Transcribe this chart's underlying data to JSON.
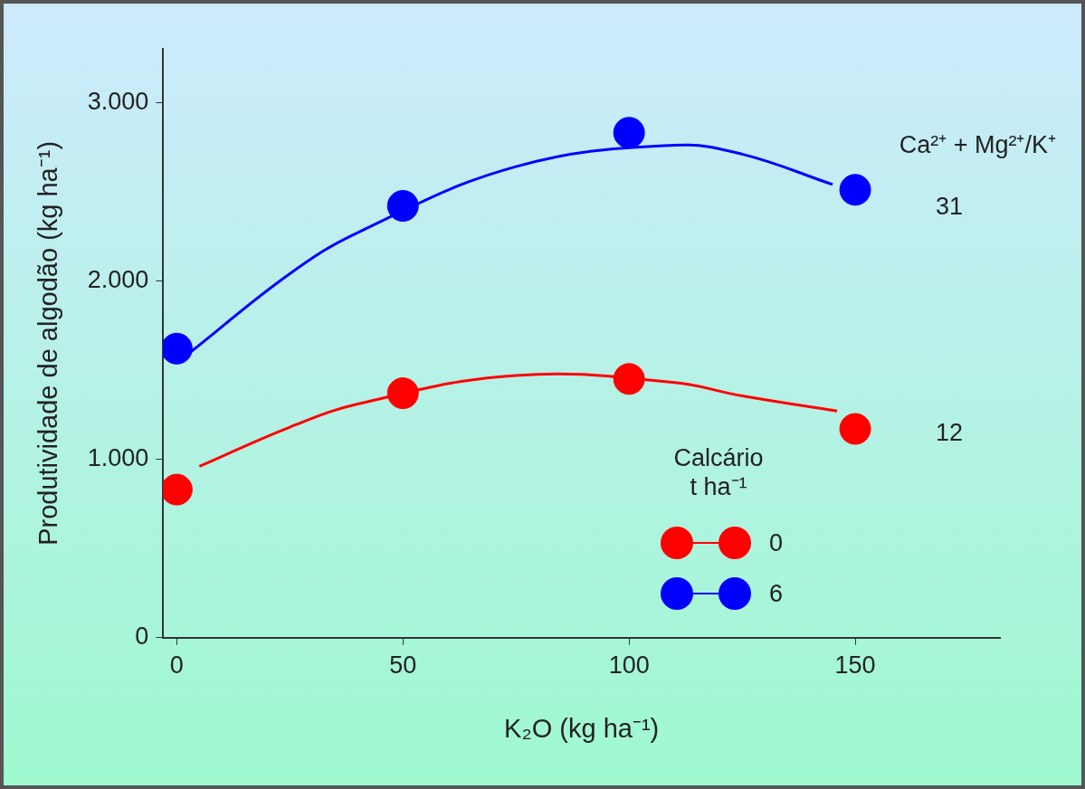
{
  "chart_data": {
    "type": "scatter",
    "xlabel": "K₂O (kg ha⁻¹)",
    "ylabel": "Produtividade de algodão (kg ha⁻¹)",
    "legend_title": "Calcário\nt ha⁻¹",
    "x": [
      0,
      50,
      100,
      150
    ],
    "series": [
      {
        "name": "0",
        "color": "#ff0000",
        "values": [
          830,
          1370,
          1450,
          1170
        ]
      },
      {
        "name": "6",
        "color": "#0000ff",
        "values": [
          1620,
          2420,
          2830,
          2510
        ]
      },
      {
        "type": "line",
        "marker": "none",
        "color": "#ff0000",
        "x": [
          5,
          25,
          40,
          75,
          110,
          125,
          146
        ],
        "values": [
          960,
          1180,
          1310,
          1470,
          1430,
          1355,
          1270
        ]
      },
      {
        "type": "line",
        "marker": "none",
        "color": "#0000ff",
        "x": [
          3,
          25,
          40,
          75,
          110,
          125,
          145
        ],
        "values": [
          1600,
          2040,
          2270,
          2640,
          2760,
          2710,
          2540
        ]
      }
    ],
    "annotations": [
      "Ca²⁺ + Mg²⁺/K⁺",
      "31",
      "12"
    ],
    "xlim": [
      -3,
      182
    ],
    "xticks": [
      0,
      50,
      100,
      150
    ],
    "ylim": [
      0,
      3300
    ],
    "yticks": [
      0,
      {
        "value": 1000,
        "label": "1.000"
      },
      {
        "value": 2000,
        "label": "2.000"
      },
      {
        "value": 3000,
        "label": "3.000"
      }
    ],
    "marker": "circle",
    "line_style": "solid",
    "grid": false,
    "legend": "bottom right"
  }
}
